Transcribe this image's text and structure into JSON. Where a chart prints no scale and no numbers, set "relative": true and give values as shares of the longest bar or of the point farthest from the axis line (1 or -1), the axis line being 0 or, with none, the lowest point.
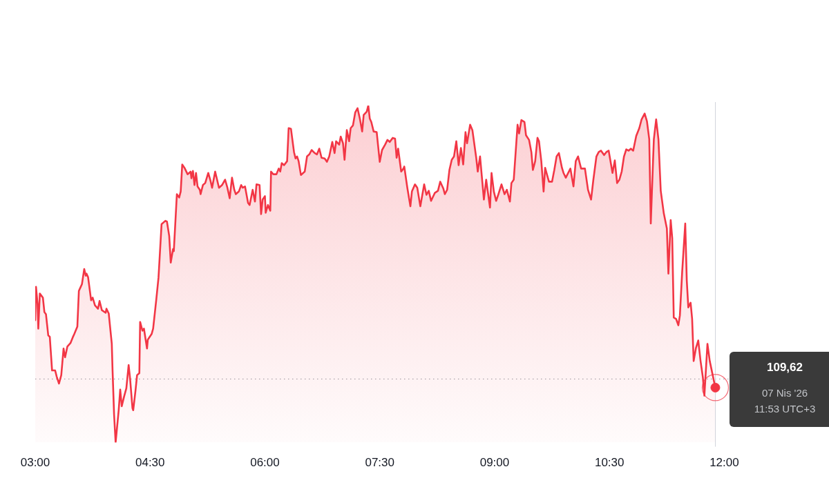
{
  "chart_data": {
    "type": "area",
    "relative": true,
    "grid": false,
    "legend": false,
    "xlim": [
      3,
      13.3
    ],
    "xticks": [
      {
        "value": 3,
        "label": "03:00"
      },
      {
        "value": 4.5,
        "label": "04:30"
      },
      {
        "value": 6,
        "label": "06:00"
      },
      {
        "value": 7.5,
        "label": "07:30"
      },
      {
        "value": 9,
        "label": "09:00"
      },
      {
        "value": 10.5,
        "label": "10:30"
      },
      {
        "value": 12,
        "label": "12:00"
      }
    ],
    "x": [
      3.0,
      3.01,
      3.03,
      3.04,
      3.06,
      3.1,
      3.12,
      3.14,
      3.17,
      3.19,
      3.22,
      3.26,
      3.28,
      3.31,
      3.34,
      3.37,
      3.39,
      3.42,
      3.46,
      3.49,
      3.51,
      3.55,
      3.57,
      3.59,
      3.61,
      3.64,
      3.66,
      3.67,
      3.69,
      3.73,
      3.75,
      3.78,
      3.82,
      3.84,
      3.87,
      3.92,
      3.93,
      3.96,
      4.0,
      4.01,
      4.03,
      4.05,
      4.09,
      4.11,
      4.13,
      4.16,
      4.19,
      4.22,
      4.24,
      4.27,
      4.28,
      4.31,
      4.33,
      4.36,
      4.37,
      4.4,
      4.42,
      4.46,
      4.47,
      4.52,
      4.54,
      4.58,
      4.61,
      4.65,
      4.7,
      4.72,
      4.75,
      4.77,
      4.8,
      4.81,
      4.85,
      4.88,
      4.9,
      4.92,
      4.95,
      4.99,
      5.03,
      5.04,
      5.06,
      5.08,
      5.1,
      5.12,
      5.15,
      5.16,
      5.19,
      5.22,
      5.26,
      5.29,
      5.31,
      5.35,
      5.4,
      5.44,
      5.48,
      5.51,
      5.54,
      5.57,
      5.6,
      5.62,
      5.66,
      5.69,
      5.71,
      5.74,
      5.78,
      5.8,
      5.84,
      5.87,
      5.89,
      5.93,
      5.95,
      5.97,
      6.0,
      6.01,
      6.04,
      6.07,
      6.08,
      6.11,
      6.15,
      6.18,
      6.2,
      6.22,
      6.25,
      6.29,
      6.31,
      6.34,
      6.38,
      6.4,
      6.42,
      6.44,
      6.47,
      6.52,
      6.55,
      6.58,
      6.61,
      6.65,
      6.68,
      6.71,
      6.74,
      6.78,
      6.81,
      6.84,
      6.88,
      6.91,
      6.93,
      6.97,
      6.99,
      7.02,
      7.04,
      7.07,
      7.1,
      7.12,
      7.15,
      7.18,
      7.21,
      7.24,
      7.27,
      7.29,
      7.33,
      7.35,
      7.37,
      7.39,
      7.42,
      7.46,
      7.5,
      7.53,
      7.57,
      7.6,
      7.63,
      7.67,
      7.7,
      7.72,
      7.74,
      7.78,
      7.81,
      7.82,
      7.86,
      7.9,
      7.92,
      7.96,
      7.99,
      8.03,
      8.08,
      8.11,
      8.14,
      8.17,
      8.22,
      8.26,
      8.29,
      8.33,
      8.35,
      8.38,
      8.41,
      8.44,
      8.47,
      8.5,
      8.53,
      8.56,
      8.59,
      8.62,
      8.64,
      8.68,
      8.71,
      8.76,
      8.78,
      8.81,
      8.86,
      8.89,
      8.94,
      8.96,
      8.99,
      9.02,
      9.05,
      9.09,
      9.13,
      9.16,
      9.2,
      9.22,
      9.25,
      9.3,
      9.32,
      9.35,
      9.39,
      9.41,
      9.45,
      9.48,
      9.5,
      9.53,
      9.56,
      9.58,
      9.61,
      9.64,
      9.66,
      9.71,
      9.75,
      9.78,
      9.81,
      9.84,
      9.88,
      9.9,
      9.93,
      9.99,
      10.03,
      10.06,
      10.09,
      10.13,
      10.18,
      10.22,
      10.26,
      10.29,
      10.33,
      10.36,
      10.39,
      10.43,
      10.46,
      10.49,
      10.54,
      10.57,
      10.6,
      10.63,
      10.66,
      10.69,
      10.72,
      10.75,
      10.78,
      10.81,
      10.85,
      10.89,
      10.92,
      10.96,
      10.99,
      11.02,
      11.04,
      11.07,
      11.08,
      11.11,
      11.14,
      11.17,
      11.21,
      11.25,
      11.27,
      11.3,
      11.32,
      11.34,
      11.37,
      11.4,
      11.42,
      11.45,
      11.49,
      11.51,
      11.53,
      11.56,
      11.58,
      11.6,
      11.63,
      11.66,
      11.69,
      11.72,
      11.74,
      11.78,
      11.81,
      11.883
    ],
    "series": [
      {
        "color": "#f23645",
        "values": [
          0.363,
          0.462,
          0.413,
          0.338,
          0.442,
          0.43,
          0.387,
          0.381,
          0.318,
          0.314,
          0.214,
          0.214,
          0.196,
          0.175,
          0.2,
          0.279,
          0.253,
          0.285,
          0.295,
          0.312,
          0.322,
          0.344,
          0.45,
          0.46,
          0.47,
          0.515,
          0.495,
          0.501,
          0.491,
          0.422,
          0.43,
          0.407,
          0.397,
          0.42,
          0.393,
          0.385,
          0.397,
          0.383,
          0.293,
          0.214,
          0.083,
          0,
          0.096,
          0.157,
          0.108,
          0.136,
          0.161,
          0.23,
          0.187,
          0.102,
          0.096,
          0.155,
          0.2,
          0.206,
          0.358,
          0.332,
          0.338,
          0.279,
          0.305,
          0.322,
          0.338,
          0.422,
          0.489,
          0.648,
          0.658,
          0.656,
          0.613,
          0.534,
          0.574,
          0.568,
          0.737,
          0.727,
          0.745,
          0.825,
          0.815,
          0.796,
          0.804,
          0.784,
          0.806,
          0.764,
          0.8,
          0.76,
          0.75,
          0.737,
          0.764,
          0.77,
          0.8,
          0.776,
          0.756,
          0.804,
          0.756,
          0.764,
          0.78,
          0.756,
          0.725,
          0.786,
          0.75,
          0.737,
          0.745,
          0.764,
          0.756,
          0.76,
          0.711,
          0.705,
          0.75,
          0.715,
          0.766,
          0.764,
          0.678,
          0.721,
          0.731,
          0.682,
          0.705,
          0.688,
          0.804,
          0.796,
          0.796,
          0.813,
          0.804,
          0.829,
          0.823,
          0.835,
          0.933,
          0.931,
          0.862,
          0.843,
          0.849,
          0.835,
          0.794,
          0.804,
          0.849,
          0.855,
          0.868,
          0.859,
          0.855,
          0.872,
          0.845,
          0.843,
          0.833,
          0.849,
          0.892,
          0.859,
          0.894,
          0.884,
          0.908,
          0.888,
          0.839,
          0.927,
          0.894,
          0.933,
          0.941,
          0.98,
          0.992,
          0.961,
          0.923,
          0.972,
          0.982,
          1,
          0.961,
          0.951,
          0.923,
          0.921,
          0.833,
          0.868,
          0.884,
          0.898,
          0.892,
          0.904,
          0.902,
          0.845,
          0.872,
          0.804,
          0.813,
          0.819,
          0.756,
          0.701,
          0.745,
          0.766,
          0.756,
          0.701,
          0.766,
          0.735,
          0.747,
          0.717,
          0.741,
          0.747,
          0.774,
          0.754,
          0.737,
          0.75,
          0.809,
          0.839,
          0.849,
          0.894,
          0.823,
          0.874,
          0.825,
          0.921,
          0.888,
          0.943,
          0.927,
          0.845,
          0.804,
          0.849,
          0.721,
          0.78,
          0.697,
          0.8,
          0.745,
          0.717,
          0.737,
          0.766,
          0.737,
          0.75,
          0.715,
          0.77,
          0.78,
          0.943,
          0.917,
          0.957,
          0.951,
          0.912,
          0.898,
          0.862,
          0.809,
          0.835,
          0.904,
          0.894,
          0.835,
          0.745,
          0.815,
          0.774,
          0.774,
          0.809,
          0.849,
          0.859,
          0.815,
          0.8,
          0.786,
          0.813,
          0.76,
          0.835,
          0.849,
          0.813,
          0.813,
          0.75,
          0.721,
          0.78,
          0.849,
          0.862,
          0.866,
          0.853,
          0.862,
          0.866,
          0.8,
          0.837,
          0.77,
          0.78,
          0.804,
          0.849,
          0.87,
          0.866,
          0.872,
          0.866,
          0.91,
          0.933,
          0.959,
          0.976,
          0.953,
          0.9,
          0.65,
          0.839,
          0.9,
          0.959,
          0.9,
          0.747,
          0.68,
          0.635,
          0.501,
          0.66,
          0.607,
          0.371,
          0.367,
          0.348,
          0.377,
          0.507,
          0.65,
          0.481,
          0.401,
          0.415,
          0.367,
          0.242,
          0.281,
          0.303,
          0.242,
          0.194,
          0.139,
          0.293,
          0.242,
          0.163
        ]
      },
      {
        "type": "scatter",
        "color": "#f23645",
        "marker": "circle",
        "x": [
          11.883
        ],
        "values": [
          0.163
        ]
      }
    ],
    "ref_lines": [
      {
        "axis": "y",
        "value": 0.189,
        "color": "#9598a1",
        "line_style": "dotted"
      },
      {
        "axis": "x",
        "value": 11.883,
        "color": "#d1d4dc",
        "line_style": "solid"
      }
    ],
    "annotations": [
      "109,62",
      "07 Nis '26",
      "11:53 UTC+3"
    ]
  }
}
